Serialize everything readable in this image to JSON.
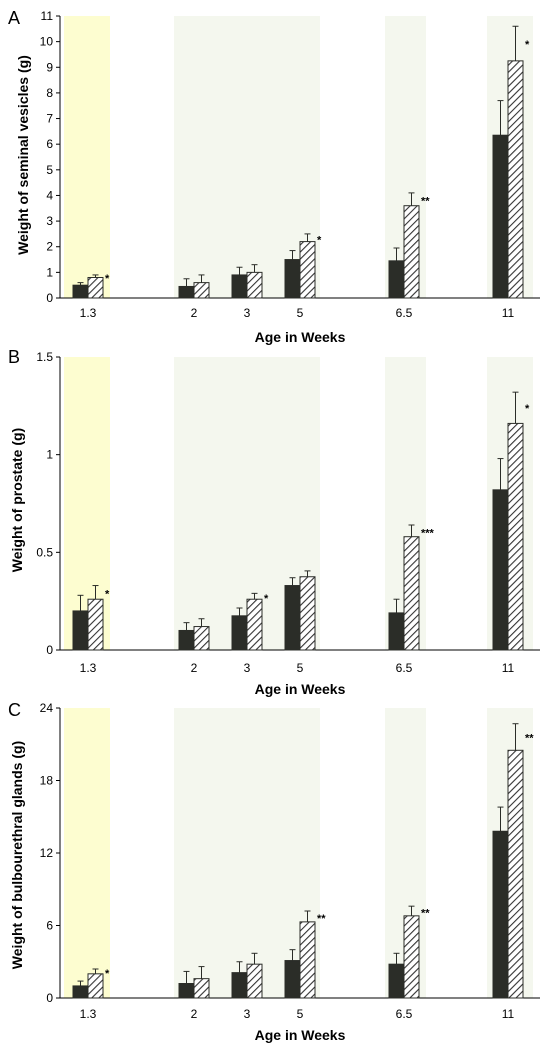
{
  "colors": {
    "highlight_yellow": "#fdfdd0",
    "highlight_green": "#f4f7ee",
    "solid_bar": "#2b2d28",
    "hatch_line": "#333333",
    "axis": "#000000"
  },
  "chart_data": [
    {
      "panel": "A",
      "type": "bar",
      "xlabel": "Age in Weeks",
      "ylabel": "Weight of seminal vesicles (g)",
      "categories": [
        "1.3",
        "2",
        "3",
        "5",
        "6.5",
        "11"
      ],
      "ylim": [
        0,
        11
      ],
      "yticks": [
        0,
        1,
        2,
        3,
        4,
        5,
        6,
        7,
        8,
        9,
        10,
        11
      ],
      "series": [
        {
          "style": "solid",
          "values": [
            0.5,
            0.45,
            0.9,
            1.5,
            1.45,
            6.35
          ],
          "errors": [
            0.1,
            0.3,
            0.3,
            0.35,
            0.5,
            1.35
          ]
        },
        {
          "style": "hatched",
          "values": [
            0.8,
            0.6,
            1.0,
            2.2,
            3.6,
            9.25
          ],
          "errors": [
            0.1,
            0.3,
            0.3,
            0.3,
            0.5,
            1.35
          ]
        }
      ],
      "significance": [
        "*",
        "",
        "",
        "*",
        "**",
        "*"
      ]
    },
    {
      "panel": "B",
      "type": "bar",
      "xlabel": "Age in Weeks",
      "ylabel": "Weight of prostate (g)",
      "categories": [
        "1.3",
        "2",
        "3",
        "5",
        "6.5",
        "11"
      ],
      "ylim": [
        0,
        1.5
      ],
      "yticks": [
        0,
        0.5,
        1,
        1.5
      ],
      "series": [
        {
          "style": "solid",
          "values": [
            0.2,
            0.1,
            0.175,
            0.33,
            0.19,
            0.82
          ],
          "errors": [
            0.08,
            0.04,
            0.04,
            0.04,
            0.07,
            0.16
          ]
        },
        {
          "style": "hatched",
          "values": [
            0.26,
            0.12,
            0.26,
            0.375,
            0.58,
            1.16
          ],
          "errors": [
            0.07,
            0.04,
            0.03,
            0.03,
            0.06,
            0.16
          ]
        }
      ],
      "significance": [
        "*",
        "",
        "*",
        "",
        "***",
        "*"
      ]
    },
    {
      "panel": "C",
      "type": "bar",
      "xlabel": "Age in Weeks",
      "ylabel": "Weight of bulbourethral glands (g)",
      "categories": [
        "1.3",
        "2",
        "3",
        "5",
        "6.5",
        "11"
      ],
      "ylim": [
        0,
        24
      ],
      "yticks": [
        0,
        6,
        12,
        18,
        24
      ],
      "series": [
        {
          "style": "solid",
          "values": [
            1.0,
            1.2,
            2.1,
            3.1,
            2.8,
            13.8
          ],
          "errors": [
            0.4,
            1.0,
            0.9,
            0.9,
            0.9,
            2.0
          ]
        },
        {
          "style": "hatched",
          "values": [
            2.0,
            1.6,
            2.8,
            6.3,
            6.8,
            20.5
          ],
          "errors": [
            0.4,
            1.0,
            0.9,
            0.9,
            0.8,
            2.2
          ]
        }
      ],
      "significance": [
        "*",
        "",
        "",
        "**",
        "**",
        "**"
      ]
    }
  ]
}
